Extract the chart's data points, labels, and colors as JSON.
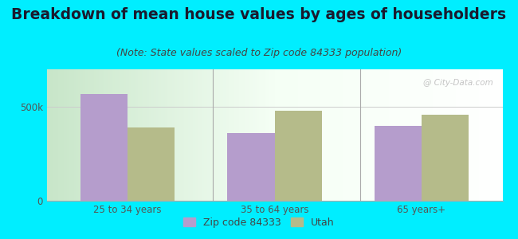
{
  "title": "Breakdown of mean house values by ages of householders",
  "subtitle": "(Note: State values scaled to Zip code 84333 population)",
  "categories": [
    "25 to 34 years",
    "35 to 64 years",
    "65 years+"
  ],
  "zip_values": [
    570000,
    360000,
    400000
  ],
  "utah_values": [
    390000,
    480000,
    460000
  ],
  "zip_color": "#b59dcc",
  "utah_color": "#b5bb8a",
  "background_color": "#00eeff",
  "yticks": [
    0,
    500000
  ],
  "ytick_labels": [
    "0",
    "500k"
  ],
  "legend_zip": "Zip code 84333",
  "legend_utah": "Utah",
  "ylim": [
    0,
    700000
  ],
  "bar_width": 0.32,
  "title_fontsize": 13.5,
  "subtitle_fontsize": 9,
  "tick_fontsize": 8.5,
  "legend_fontsize": 9,
  "watermark": "@ City-Data.com"
}
